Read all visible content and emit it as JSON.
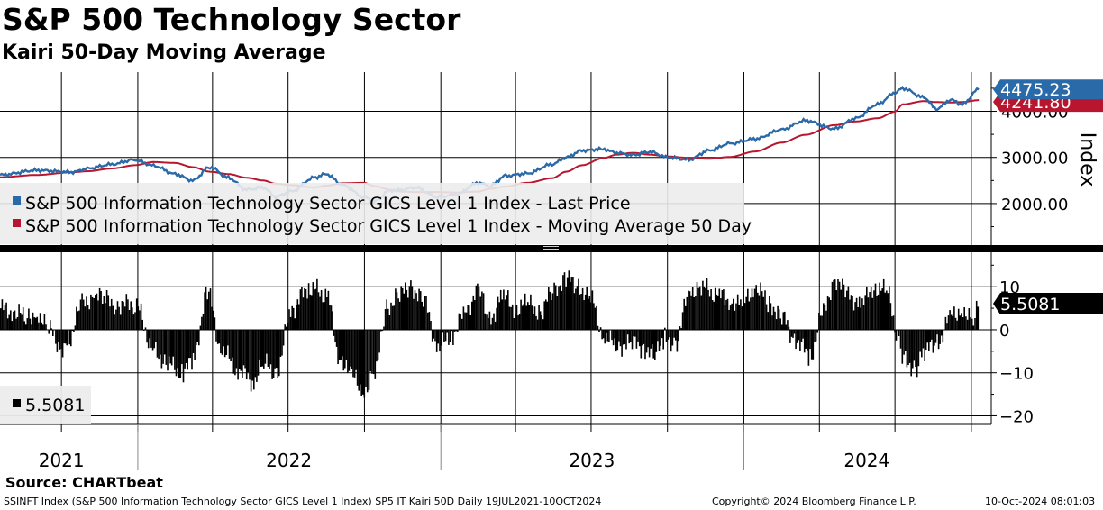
{
  "header": {
    "title": "S&P 500 Technology Sector",
    "subtitle": "Kairi 50-Day Moving Average"
  },
  "footer": {
    "source": "Source: CHARTbeat",
    "descriptor": "SSINFT Index (S&P 500 Information Technology Sector GICS Level 1 Index) SP5 IT Kairi 50D  Daily 19JUL2021-10OCT2024",
    "copyright": "Copyright© 2024 Bloomberg Finance L.P.",
    "timestamp": "10-Oct-2024 08:01:03"
  },
  "colors": {
    "price": "#2a6aa8",
    "ma": "#b8162e",
    "kairi": "#000000",
    "grid": "#000000",
    "legend_bg": "#ececec",
    "price_tag_bg": "#2a6aa8",
    "kairi_tag_bg": "#000000"
  },
  "chart_data": [
    {
      "type": "line",
      "ylabel": "Index",
      "ylim": [
        1100,
        4850
      ],
      "yticks": [
        "2000.00",
        "3000.00",
        "4000.00"
      ],
      "x_year_labels": [
        "2021",
        "2022",
        "2023",
        "2024"
      ],
      "legend": [
        "S&P 500 Information Technology Sector GICS Level 1 Index - Last Price",
        "S&P 500 Information Technology Sector GICS Level 1 Index - Moving Average 50 Day"
      ],
      "last_price_label": "4475.23",
      "ma_label": "4241.80",
      "x": [
        "2021-07-19",
        "2021-09-01",
        "2021-10-15",
        "2021-11-01",
        "2021-12-01",
        "2021-12-28",
        "2022-01-20",
        "2022-02-15",
        "2022-03-08",
        "2022-03-29",
        "2022-04-20",
        "2022-05-12",
        "2022-06-01",
        "2022-06-16",
        "2022-07-05",
        "2022-08-01",
        "2022-08-16",
        "2022-09-05",
        "2022-09-30",
        "2022-10-13",
        "2022-11-01",
        "2022-11-15",
        "2022-12-01",
        "2022-12-28",
        "2023-01-20",
        "2023-02-15",
        "2023-03-01",
        "2023-03-20",
        "2023-04-15",
        "2023-05-15",
        "2023-06-01",
        "2023-06-20",
        "2023-07-15",
        "2023-08-01",
        "2023-08-20",
        "2023-09-10",
        "2023-10-01",
        "2023-10-27",
        "2023-11-20",
        "2023-12-15",
        "2024-01-15",
        "2024-02-15",
        "2024-03-15",
        "2024-04-19",
        "2024-05-15",
        "2024-06-10",
        "2024-07-01",
        "2024-07-10",
        "2024-08-05",
        "2024-08-20",
        "2024-09-06",
        "2024-09-20",
        "2024-10-10"
      ],
      "series": [
        {
          "name": "S&P 500 Information Technology Sector GICS Level 1 Index - Last Price",
          "values": [
            2620,
            2720,
            2680,
            2760,
            2850,
            2950,
            2820,
            2640,
            2500,
            2790,
            2560,
            2300,
            2350,
            2150,
            2260,
            2560,
            2640,
            2400,
            2150,
            2050,
            2280,
            2300,
            2350,
            2140,
            2200,
            2450,
            2380,
            2600,
            2650,
            2850,
            3000,
            3150,
            3180,
            3100,
            3050,
            3120,
            3000,
            2950,
            3150,
            3300,
            3400,
            3600,
            3800,
            3620,
            3850,
            4150,
            4400,
            4500,
            4300,
            4050,
            4250,
            4150,
            4475.23
          ]
        },
        {
          "name": "S&P 500 Information Technology Sector GICS Level 1 Index - Moving Average 50 Day",
          "values": [
            2570,
            2620,
            2680,
            2700,
            2760,
            2830,
            2900,
            2880,
            2790,
            2690,
            2640,
            2560,
            2500,
            2430,
            2400,
            2350,
            2390,
            2440,
            2450,
            2380,
            2300,
            2260,
            2250,
            2250,
            2240,
            2260,
            2320,
            2370,
            2450,
            2550,
            2690,
            2830,
            2980,
            3060,
            3100,
            3060,
            3020,
            2990,
            2970,
            3010,
            3130,
            3320,
            3490,
            3700,
            3780,
            3850,
            3990,
            4150,
            4220,
            4200,
            4190,
            4200,
            4241.8
          ]
        }
      ]
    },
    {
      "type": "bar",
      "ylim": [
        -22,
        18
      ],
      "yticks": [
        -20,
        -10,
        0,
        10
      ],
      "legend": [
        "5.5081"
      ],
      "last_value_label": "5.5081",
      "x": [
        "2021-07-19",
        "2021-08-05",
        "2021-08-20",
        "2021-09-01",
        "2021-09-15",
        "2021-09-30",
        "2021-10-10",
        "2021-10-25",
        "2021-11-10",
        "2021-11-22",
        "2021-12-05",
        "2021-12-28",
        "2022-01-20",
        "2022-02-05",
        "2022-02-24",
        "2022-03-08",
        "2022-03-25",
        "2022-04-10",
        "2022-04-29",
        "2022-05-20",
        "2022-06-01",
        "2022-06-16",
        "2022-07-05",
        "2022-07-25",
        "2022-08-16",
        "2022-08-31",
        "2022-09-15",
        "2022-09-30",
        "2022-10-13",
        "2022-10-27",
        "2022-11-10",
        "2022-11-25",
        "2022-12-10",
        "2022-12-28",
        "2023-01-15",
        "2023-01-31",
        "2023-02-15",
        "2023-02-28",
        "2023-03-15",
        "2023-03-31",
        "2023-04-15",
        "2023-04-30",
        "2023-05-15",
        "2023-05-31",
        "2023-06-15",
        "2023-06-30",
        "2023-07-15",
        "2023-08-01",
        "2023-08-15",
        "2023-08-31",
        "2023-09-15",
        "2023-09-27",
        "2023-10-10",
        "2023-10-27",
        "2023-11-10",
        "2023-11-30",
        "2023-12-15",
        "2023-12-29",
        "2024-01-15",
        "2024-01-31",
        "2024-02-15",
        "2024-03-01",
        "2024-03-20",
        "2024-04-05",
        "2024-04-19",
        "2024-05-05",
        "2024-05-20",
        "2024-06-05",
        "2024-06-20",
        "2024-07-05",
        "2024-07-11",
        "2024-07-25",
        "2024-08-05",
        "2024-08-20",
        "2024-09-06",
        "2024-09-20",
        "2024-10-01",
        "2024-10-10"
      ],
      "values": [
        5,
        4,
        3,
        4,
        0,
        -4,
        -2,
        6,
        8,
        7,
        6,
        6,
        -5,
        -8,
        -10,
        -7,
        9,
        -4,
        -9,
        -12,
        -8,
        -10,
        5,
        10,
        8,
        -6,
        -11,
        -14,
        -10,
        5,
        8,
        10,
        7,
        -4,
        -1,
        5,
        9,
        2,
        8,
        5,
        6,
        4,
        9,
        12,
        10,
        7,
        -1,
        -4,
        -3,
        -4,
        -6,
        -2,
        -3,
        9,
        10,
        8,
        7,
        6,
        10,
        6,
        3,
        -2,
        -6,
        4,
        12,
        8,
        6,
        10,
        9,
        -2,
        -7,
        -9,
        -5,
        -3,
        3,
        5,
        2,
        5.5081
      ]
    }
  ]
}
